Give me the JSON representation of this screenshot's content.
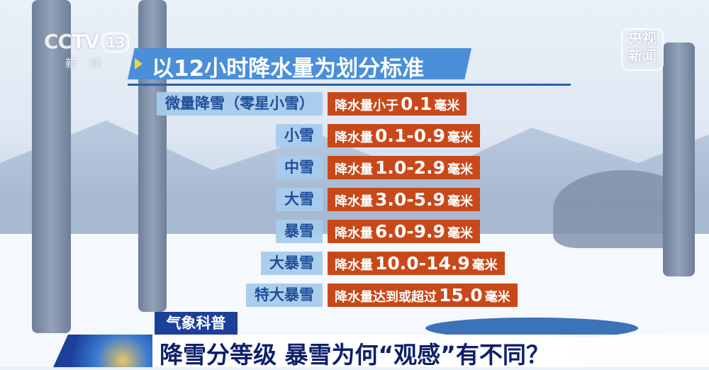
{
  "channel_logo": {
    "brand": "CCTV",
    "channel": "13",
    "sub": "新闻"
  },
  "corner_logo": {
    "line1": "央视",
    "line2": "新闻"
  },
  "title": "以12小时降水量为划分标准",
  "rows": [
    {
      "label": "微量降雪（零星小雪）",
      "prefix": "降水量小于",
      "value": "0.1",
      "unit": "毫米"
    },
    {
      "label": "小雪",
      "prefix": "降水量",
      "value": "0.1-0.9",
      "unit": "毫米"
    },
    {
      "label": "中雪",
      "prefix": "降水量",
      "value": "1.0-2.9",
      "unit": "毫米"
    },
    {
      "label": "大雪",
      "prefix": "降水量",
      "value": "3.0-5.9",
      "unit": "毫米"
    },
    {
      "label": "暴雪",
      "prefix": "降水量",
      "value": "6.0-9.9",
      "unit": "毫米"
    },
    {
      "label": "大暴雪",
      "prefix": "降水量",
      "value": "10.0-14.9",
      "unit": "毫米"
    },
    {
      "label": "特大暴雪",
      "prefix": "降水量达到或超过",
      "value": "15.0",
      "unit": "毫米"
    }
  ],
  "lower_third": {
    "tag": "气象科普",
    "headline": "降雪分等级 暴雪为何“观感”有不同？"
  },
  "colors": {
    "title_bar": "#4a8fd8",
    "label_bg": "#a8cbec",
    "label_text": "#1f4f9a",
    "value_bg": "#c9481a",
    "tag_bg": "#1c3f99",
    "headline_text": "#0e1f6b"
  }
}
